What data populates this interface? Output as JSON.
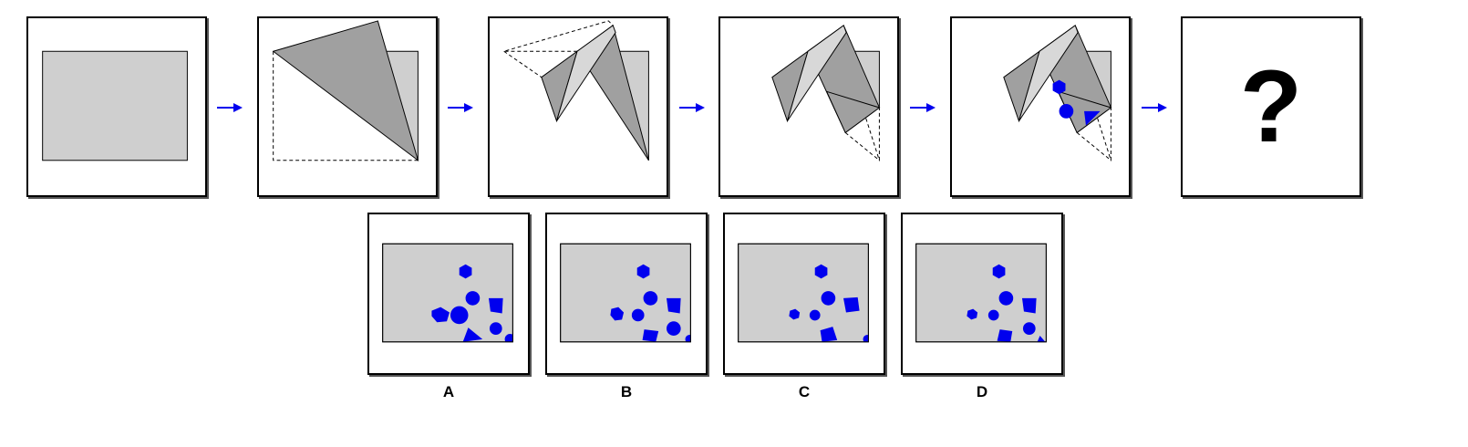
{
  "colors": {
    "paper": "#cfcfcf",
    "fold_dark": "#a0a0a0",
    "fold_light": "#d8d8d8",
    "punch": "#0000ee",
    "arrow": "#0000ee"
  },
  "question": {
    "mark": "?"
  },
  "options": [
    {
      "label": "A"
    },
    {
      "label": "B"
    },
    {
      "label": "C"
    },
    {
      "label": "D"
    }
  ]
}
